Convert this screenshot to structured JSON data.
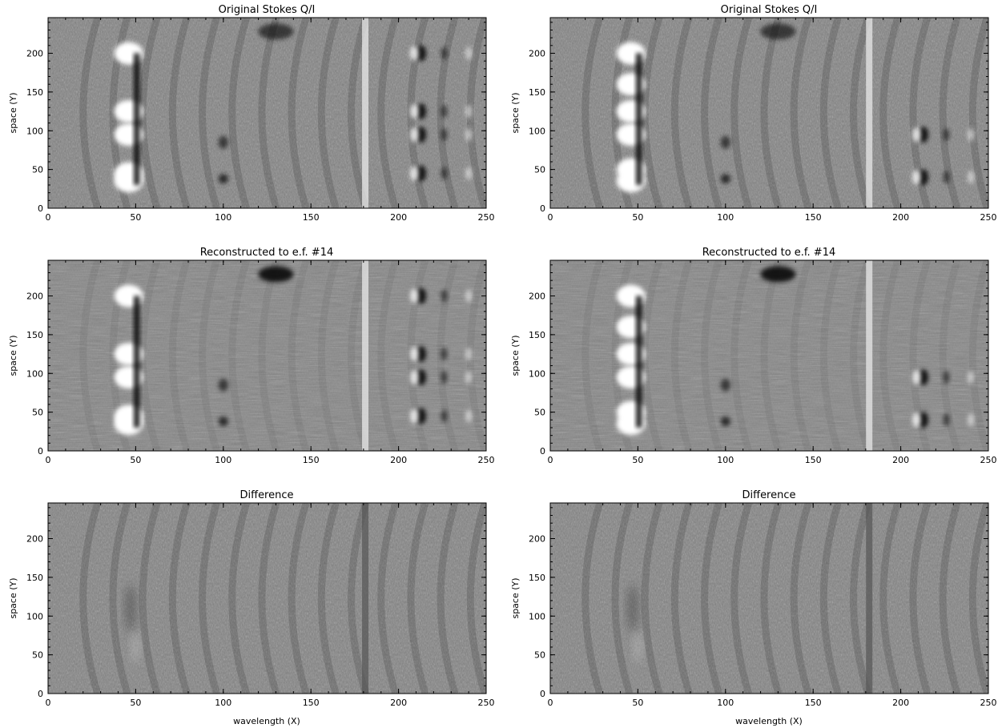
{
  "chart_data": [
    {
      "type": "heatmap",
      "title": "Original Stokes Q/I",
      "xlabel": "",
      "ylabel": "space (Y)",
      "xlim": [
        0,
        250
      ],
      "ylim": [
        0,
        246
      ],
      "xticks": [
        "0",
        "50",
        "100",
        "150",
        "200",
        "250"
      ],
      "yticks": [
        "0",
        "50",
        "100",
        "150",
        "200"
      ],
      "colormap": "grayscale"
    },
    {
      "type": "heatmap",
      "title": "Original Stokes Q/I",
      "xlabel": "",
      "ylabel": "space (Y)",
      "xlim": [
        0,
        250
      ],
      "ylim": [
        0,
        246
      ],
      "xticks": [
        "0",
        "50",
        "100",
        "150",
        "200",
        "250"
      ],
      "yticks": [
        "0",
        "50",
        "100",
        "150",
        "200"
      ],
      "colormap": "grayscale"
    },
    {
      "type": "heatmap",
      "title": "Reconstructed to e.f. #14",
      "xlabel": "",
      "ylabel": "space (Y)",
      "xlim": [
        0,
        250
      ],
      "ylim": [
        0,
        246
      ],
      "xticks": [
        "0",
        "50",
        "100",
        "150",
        "200",
        "250"
      ],
      "yticks": [
        "0",
        "50",
        "100",
        "150",
        "200"
      ],
      "colormap": "grayscale"
    },
    {
      "type": "heatmap",
      "title": "Reconstructed to e.f. #14",
      "xlabel": "",
      "ylabel": "space (Y)",
      "xlim": [
        0,
        250
      ],
      "ylim": [
        0,
        246
      ],
      "xticks": [
        "0",
        "50",
        "100",
        "150",
        "200",
        "250"
      ],
      "yticks": [
        "0",
        "50",
        "100",
        "150",
        "200"
      ],
      "colormap": "grayscale"
    },
    {
      "type": "heatmap",
      "title": "Difference",
      "xlabel": "wavelength (X)",
      "ylabel": "space (Y)",
      "xlim": [
        0,
        250
      ],
      "ylim": [
        0,
        246
      ],
      "xticks": [
        "0",
        "50",
        "100",
        "150",
        "200",
        "250"
      ],
      "yticks": [
        "0",
        "50",
        "100",
        "150",
        "200"
      ],
      "colormap": "grayscale"
    },
    {
      "type": "heatmap",
      "title": "Difference",
      "xlabel": "wavelength (X)",
      "ylabel": "space (Y)",
      "xlim": [
        0,
        250
      ],
      "ylim": [
        0,
        246
      ],
      "xticks": [
        "0",
        "50",
        "100",
        "150",
        "200",
        "250"
      ],
      "yticks": [
        "0",
        "50",
        "100",
        "150",
        "200"
      ],
      "colormap": "grayscale"
    }
  ]
}
